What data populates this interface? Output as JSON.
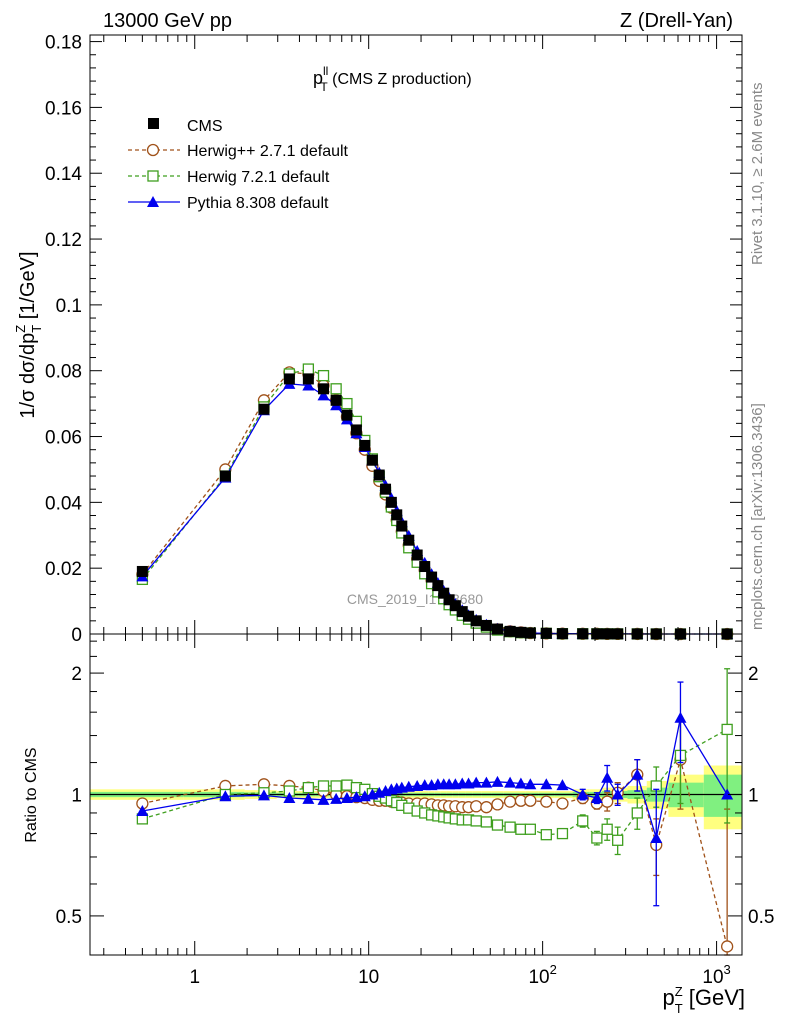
{
  "header": {
    "left": "13000 GeV pp",
    "right": "Z (Drell-Yan)"
  },
  "title": {
    "main": "p",
    "sup": "ll",
    "sub": "T",
    "rest": " (CMS Z production)"
  },
  "side_text": {
    "rivet": "Rivet 3.1.10, ≥ 2.6M events",
    "mcplots": "mcplots.cern.ch [arXiv:1306.3436]"
  },
  "watermark": "CMS_2019_I1753680",
  "colors": {
    "cms": "#000000",
    "herwigpp": "#a0521a",
    "herwig7": "#3f9f1f",
    "pythia": "#0000ee",
    "band_yellow": "#ffff80",
    "band_green": "#80f080"
  },
  "chart_data": [
    {
      "type": "scatter",
      "xscale": "log",
      "xlim": [
        0.25,
        1400
      ],
      "ylim": [
        0,
        0.182
      ],
      "ylabel": "1/σ dσ/dp",
      "ylabel_sup": "Z",
      "ylabel_sub": "T",
      "ylabel_unit": " [1/GeV]",
      "y_ticks": [
        "0",
        "0.02",
        "0.04",
        "0.06",
        "0.08",
        "0.1",
        "0.12",
        "0.14",
        "0.16",
        "0.18"
      ],
      "x": [
        0.5,
        1.5,
        2.5,
        3.5,
        4.5,
        5.5,
        6.5,
        7.5,
        8.5,
        9.5,
        10.5,
        11.5,
        12.5,
        13.5,
        14.5,
        15.5,
        17,
        19,
        21,
        23,
        25,
        27,
        29,
        31.5,
        34.5,
        37.5,
        41.5,
        47.5,
        55,
        65,
        75,
        85,
        105,
        130,
        170,
        205,
        235,
        270,
        350,
        450,
        620,
        1150
      ],
      "series": [
        {
          "name": "CMS",
          "key": "cms",
          "marker": "square-filled",
          "values": [
            0.019,
            0.048,
            0.0683,
            0.0775,
            0.0775,
            0.0745,
            0.071,
            0.0665,
            0.062,
            0.0573,
            0.0528,
            0.0483,
            0.044,
            0.04,
            0.0362,
            0.0328,
            0.0285,
            0.024,
            0.0205,
            0.0173,
            0.0147,
            0.0124,
            0.0104,
            0.0086,
            0.0068,
            0.0054,
            0.004,
            0.0026,
            0.0015,
            0.0008,
            0.0005,
            0.0003,
            0.0002,
            0.0001,
            7e-05,
            5e-05,
            4e-05,
            3e-05,
            2e-05,
            1e-05,
            5e-06,
            1e-06
          ]
        },
        {
          "name": "Herwig++ 2.7.1 default",
          "key": "herwigpp",
          "marker": "circle-open",
          "line": "dashed",
          "values": [
            0.0181,
            0.05,
            0.071,
            0.0795,
            0.079,
            0.0755,
            0.071,
            0.066,
            0.061,
            0.056,
            0.0511,
            0.0465,
            0.0424,
            0.0384,
            0.0346,
            0.0312,
            0.027,
            0.0228,
            0.0194,
            0.0163,
            0.0138,
            0.0116,
            0.0097,
            0.008,
            0.0063,
            0.005,
            0.0037,
            0.0024,
            0.0014,
            0.0008,
            0.0005,
            0.0003,
            0.0002,
            0.0001,
            7e-05,
            5e-05,
            4e-05,
            3e-05,
            2e-05,
            1e-05,
            5e-06,
            1e-06
          ]
        },
        {
          "name": "Herwig 7.2.1 default",
          "key": "herwig7",
          "marker": "square-open",
          "line": "dashed",
          "values": [
            0.0166,
            0.048,
            0.069,
            0.079,
            0.0805,
            0.0785,
            0.0745,
            0.07,
            0.0646,
            0.0588,
            0.0532,
            0.0478,
            0.0431,
            0.0386,
            0.0345,
            0.0307,
            0.0262,
            0.0218,
            0.0183,
            0.0153,
            0.0128,
            0.0107,
            0.0089,
            0.0073,
            0.0057,
            0.0045,
            0.0033,
            0.0021,
            0.0012,
            0.0007,
            0.0004,
            0.0003,
            0.0002,
            0.0001,
            7e-05,
            5e-05,
            4e-05,
            3e-05,
            2e-05,
            1e-05,
            5e-06,
            1e-06
          ]
        },
        {
          "name": "Pythia 8.308 default",
          "key": "pythia",
          "marker": "triangle-filled",
          "line": "solid",
          "values": [
            0.0175,
            0.0475,
            0.068,
            0.076,
            0.0755,
            0.0725,
            0.0695,
            0.0652,
            0.061,
            0.0568,
            0.0528,
            0.049,
            0.0451,
            0.0412,
            0.0374,
            0.034,
            0.0298,
            0.0252,
            0.0216,
            0.0182,
            0.0155,
            0.0131,
            0.011,
            0.0091,
            0.0072,
            0.0057,
            0.0043,
            0.0028,
            0.0016,
            0.0009,
            0.0005,
            0.0003,
            0.0002,
            0.0001,
            7e-05,
            5e-05,
            4e-05,
            3e-05,
            2e-05,
            1e-05,
            5e-06,
            1e-06
          ]
        }
      ]
    },
    {
      "type": "scatter",
      "xscale": "log",
      "yscale": "log",
      "xlim": [
        0.25,
        1400
      ],
      "ylim": [
        0.4,
        2.5
      ],
      "ylabel": "Ratio to CMS",
      "xlabel": "p",
      "xlabel_sup": "Z",
      "xlabel_sub": "T",
      "xlabel_unit": " [GeV]",
      "x_ticks": [
        {
          "v": 1,
          "base": "1",
          "exp": ""
        },
        {
          "v": 10,
          "base": "10",
          "exp": ""
        },
        {
          "v": 100,
          "base": "10",
          "exp": "2"
        },
        {
          "v": 1000,
          "base": "10",
          "exp": "3"
        }
      ],
      "y_ticks": [
        {
          "v": 0.5,
          "label": "0.5"
        },
        {
          "v": 1,
          "label": "1"
        },
        {
          "v": 2,
          "label": "2"
        }
      ],
      "x": [
        0.5,
        1.5,
        2.5,
        3.5,
        4.5,
        5.5,
        6.5,
        7.5,
        8.5,
        9.5,
        10.5,
        11.5,
        12.5,
        13.5,
        14.5,
        15.5,
        17,
        19,
        21,
        23,
        25,
        27,
        29,
        31.5,
        34.5,
        37.5,
        41.5,
        47.5,
        55,
        65,
        75,
        85,
        105,
        130,
        170,
        205,
        235,
        270,
        350,
        450,
        620,
        1150
      ],
      "band": {
        "yellow": [
          0.03,
          0.03,
          0.025,
          0.02,
          0.02,
          0.02,
          0.02,
          0.02,
          0.02,
          0.02,
          0.02,
          0.02,
          0.02,
          0.02,
          0.02,
          0.02,
          0.02,
          0.02,
          0.02,
          0.02,
          0.02,
          0.02,
          0.02,
          0.02,
          0.02,
          0.02,
          0.02,
          0.02,
          0.02,
          0.02,
          0.02,
          0.02,
          0.02,
          0.02,
          0.03,
          0.03,
          0.04,
          0.04,
          0.05,
          0.08,
          0.12,
          0.18
        ],
        "green": [
          0.015,
          0.015,
          0.012,
          0.01,
          0.01,
          0.01,
          0.01,
          0.01,
          0.01,
          0.01,
          0.01,
          0.01,
          0.01,
          0.01,
          0.01,
          0.01,
          0.01,
          0.01,
          0.01,
          0.01,
          0.01,
          0.01,
          0.01,
          0.01,
          0.01,
          0.01,
          0.01,
          0.01,
          0.01,
          0.01,
          0.01,
          0.01,
          0.01,
          0.01,
          0.015,
          0.015,
          0.02,
          0.02,
          0.025,
          0.04,
          0.07,
          0.12
        ]
      },
      "series": [
        {
          "name": "Herwig++ 2.7.1 default",
          "key": "herwigpp",
          "values": [
            0.95,
            1.05,
            1.06,
            1.05,
            1.04,
            1.02,
            1.0,
            0.99,
            0.985,
            0.98,
            0.97,
            0.965,
            0.965,
            0.96,
            0.96,
            0.955,
            0.95,
            0.95,
            0.95,
            0.945,
            0.94,
            0.94,
            0.935,
            0.935,
            0.93,
            0.93,
            0.935,
            0.93,
            0.945,
            0.96,
            0.965,
            0.965,
            0.96,
            0.95,
            0.98,
            0.95,
            0.96,
            1.01,
            1.12,
            0.75,
            1.22,
            0.42
          ],
          "err": [
            0.005,
            0.005,
            0.005,
            0.005,
            0.005,
            0.005,
            0.005,
            0.005,
            0.005,
            0.005,
            0.005,
            0.005,
            0.005,
            0.005,
            0.005,
            0.005,
            0.005,
            0.005,
            0.005,
            0.005,
            0.005,
            0.005,
            0.005,
            0.005,
            0.005,
            0.005,
            0.005,
            0.005,
            0.005,
            0.005,
            0.01,
            0.01,
            0.01,
            0.01,
            0.03,
            0.03,
            0.05,
            0.06,
            0.1,
            0.12,
            0.3,
            0.5
          ]
        },
        {
          "name": "Herwig 7.2.1 default",
          "key": "herwig7",
          "values": [
            0.87,
            1.0,
            1.01,
            1.02,
            1.04,
            1.05,
            1.05,
            1.055,
            1.04,
            1.03,
            1.005,
            0.99,
            0.98,
            0.965,
            0.955,
            0.94,
            0.925,
            0.91,
            0.9,
            0.89,
            0.885,
            0.88,
            0.875,
            0.87,
            0.865,
            0.865,
            0.86,
            0.855,
            0.84,
            0.83,
            0.82,
            0.82,
            0.795,
            0.8,
            0.86,
            0.78,
            0.82,
            0.77,
            0.9,
            1.05,
            1.25,
            1.45
          ],
          "err": [
            0.005,
            0.005,
            0.005,
            0.005,
            0.005,
            0.005,
            0.005,
            0.005,
            0.005,
            0.005,
            0.005,
            0.005,
            0.005,
            0.005,
            0.005,
            0.005,
            0.005,
            0.005,
            0.005,
            0.005,
            0.005,
            0.005,
            0.005,
            0.005,
            0.005,
            0.005,
            0.005,
            0.005,
            0.005,
            0.005,
            0.01,
            0.01,
            0.01,
            0.01,
            0.03,
            0.03,
            0.05,
            0.06,
            0.08,
            0.12,
            0.3,
            0.6
          ]
        },
        {
          "name": "Pythia 8.308 default",
          "key": "pythia",
          "values": [
            0.91,
            0.99,
            0.995,
            0.98,
            0.975,
            0.97,
            0.975,
            0.98,
            0.985,
            0.99,
            1.0,
            1.01,
            1.02,
            1.03,
            1.035,
            1.04,
            1.045,
            1.05,
            1.055,
            1.055,
            1.06,
            1.06,
            1.06,
            1.06,
            1.065,
            1.065,
            1.07,
            1.07,
            1.075,
            1.07,
            1.065,
            1.06,
            1.06,
            1.055,
            1.0,
            0.98,
            1.1,
            1.0,
            1.12,
            0.78,
            1.55,
            1.0
          ],
          "err": [
            0.005,
            0.005,
            0.005,
            0.005,
            0.005,
            0.005,
            0.005,
            0.005,
            0.005,
            0.005,
            0.005,
            0.005,
            0.005,
            0.005,
            0.005,
            0.005,
            0.005,
            0.005,
            0.005,
            0.005,
            0.005,
            0.005,
            0.005,
            0.005,
            0.005,
            0.005,
            0.005,
            0.005,
            0.005,
            0.005,
            0.01,
            0.01,
            0.01,
            0.01,
            0.03,
            0.03,
            0.08,
            0.06,
            0.1,
            0.25,
            0.35,
            0
          ]
        }
      ]
    }
  ]
}
